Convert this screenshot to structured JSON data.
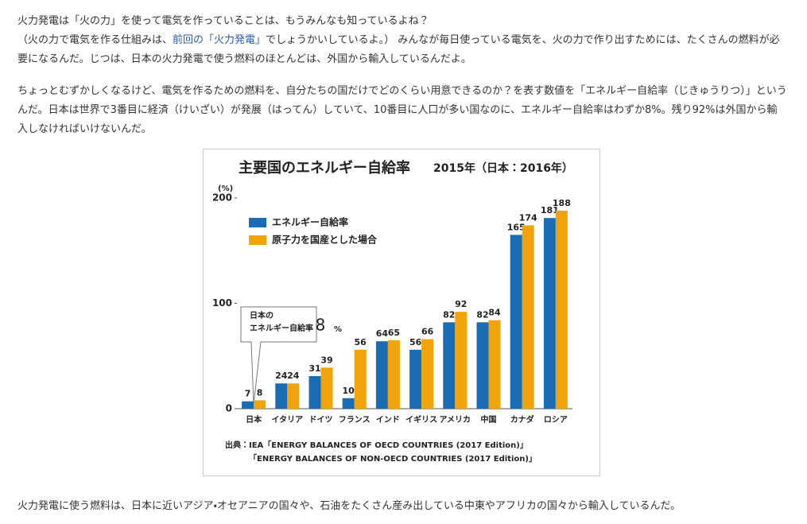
{
  "intro": {
    "line1": "火力発電は「火の力」を使って電気を作っていることは、もうみんなも知っているよね？",
    "line2_before": "（火の力で電気を作る仕組みは、",
    "link": "前回の「火力発電」",
    "line2_after": "でしょうかいしているよ。） みんなが毎日使っている電気を、火の力で作り出すためには、たくさんの燃料が必要になるんだ。じつは、日本の火力発電で使う燃料のほとんどは、外国から輸入しているんだよ。"
  },
  "paragraph2": "ちょっとむずかしくなるけど、電気を作るための燃料を、自分たちの国だけでどのくらい用意できるのか？を表す数値を「エネルギー自給率（じきゅうりつ）」というんだ。日本は世界で3番目に経済（けいざい）が発展（はってん）していて、10番目に人口が多い国なのに、エネルギー自給率はわずか8%。残り92%は外国から輸入しなければいけないんだ。",
  "paragraph3": "火力発電に使う燃料は、日本に近いアジア・オセアニアの国々や、石油をたくさん産み出している中東やアフリカの国々から輸入しているんだ。",
  "chart_data": {
    "type": "bar",
    "title": "主要国のエネルギー自給率",
    "subtitle": "2015年（日本：2016年）",
    "y_unit": "(%)",
    "categories": [
      "日本",
      "イタリア",
      "ドイツ",
      "フランス",
      "インド",
      "イギリス",
      "アメリカ",
      "中国",
      "カナダ",
      "ロシア"
    ],
    "series": [
      {
        "name": "エネルギー自給率",
        "color": "#1a6db5",
        "values": [
          7,
          24,
          31,
          10,
          64,
          56,
          82,
          82,
          165,
          181
        ]
      },
      {
        "name": "原子力を国産とした場合",
        "color": "#f0a30a",
        "values": [
          8,
          24,
          39,
          56,
          65,
          66,
          92,
          84,
          174,
          188
        ]
      }
    ],
    "ylim": [
      0,
      200
    ],
    "yticks": [
      0,
      100,
      200
    ],
    "callout": {
      "line1": "日本の",
      "line2": "エネルギー自給率",
      "value": "8",
      "unit": "%"
    },
    "source": [
      "出典：IEA「ENERGY BALANCES OF OECD COUNTRIES (2017 Edition)」",
      "「ENERGY BALANCES OF NON-OECD COUNTRIES (2017 Edition)」"
    ]
  }
}
